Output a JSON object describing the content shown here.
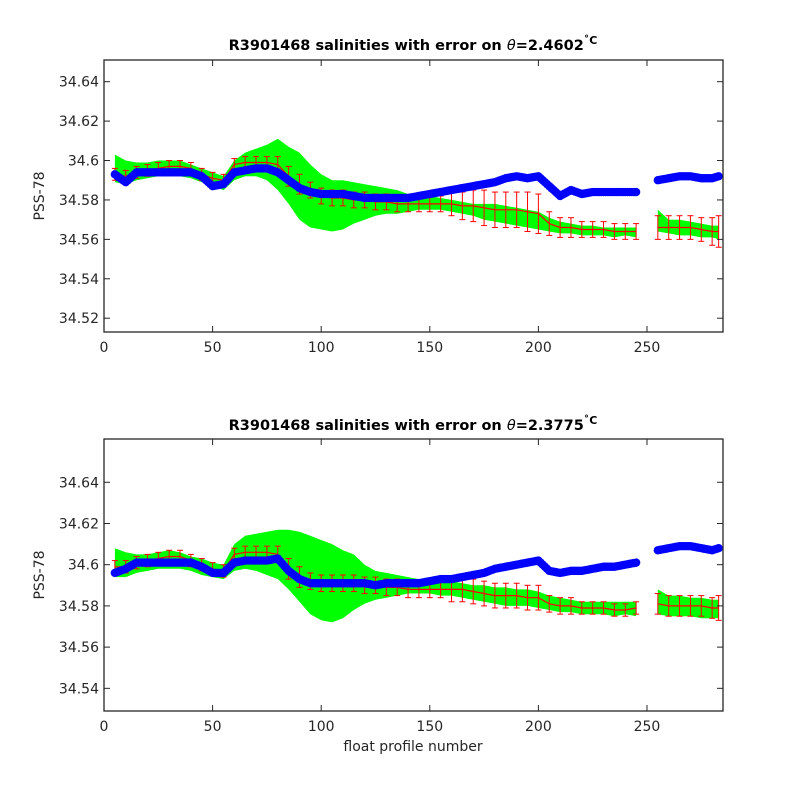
{
  "figure": {
    "xlabel": "float profile number"
  },
  "chart_data": [
    {
      "type": "line",
      "title": "R3901468 salinities with error on θ=2.4602˚C",
      "title_prefix": "R3901468 salinities with error on ",
      "title_theta": "θ",
      "title_value": "=2.4602",
      "title_unit": "˚C",
      "xlabel": "",
      "ylabel": "PSS-78",
      "xlim": [
        0,
        285
      ],
      "ylim": [
        34.513,
        34.651
      ],
      "xticks": [
        "0",
        "50",
        "100",
        "150",
        "200",
        "250"
      ],
      "yticks": [
        "34.52",
        "34.54",
        "34.56",
        "34.58",
        "34.6",
        "34.62",
        "34.64"
      ],
      "grid": false,
      "colors": {
        "envelope": "#00ff00",
        "errorbars": "#ff0000",
        "float": "#0000ff"
      },
      "x": [
        5,
        10,
        15,
        20,
        25,
        30,
        35,
        40,
        45,
        50,
        55,
        60,
        65,
        70,
        75,
        80,
        85,
        90,
        95,
        100,
        105,
        110,
        115,
        120,
        125,
        130,
        135,
        140,
        145,
        150,
        155,
        160,
        165,
        170,
        175,
        180,
        185,
        190,
        195,
        200,
        205,
        210,
        215,
        220,
        225,
        230,
        235,
        240,
        245,
        255,
        260,
        265,
        270,
        275,
        280,
        283
      ],
      "series": [
        {
          "role": "envelope",
          "upper": [
            34.603,
            34.6,
            34.599,
            34.599,
            34.6,
            34.6,
            34.6,
            34.598,
            34.596,
            34.594,
            34.592,
            34.6,
            34.604,
            34.606,
            34.608,
            34.611,
            34.607,
            34.604,
            34.598,
            34.593,
            34.59,
            34.59,
            34.589,
            34.588,
            34.587,
            34.586,
            34.585,
            34.583,
            34.582,
            34.582,
            34.581,
            34.58,
            34.579,
            34.578,
            34.578,
            34.578,
            34.577,
            34.576,
            34.575,
            34.574,
            34.571,
            34.569,
            34.568,
            34.567,
            34.567,
            34.566,
            34.566,
            34.566,
            34.566,
            34.575,
            34.57,
            34.57,
            34.569,
            34.568,
            34.567,
            34.567
          ],
          "lower": [
            34.589,
            34.588,
            34.59,
            34.591,
            34.592,
            34.592,
            34.592,
            34.591,
            34.589,
            34.587,
            34.585,
            34.59,
            34.592,
            34.592,
            34.59,
            34.585,
            34.578,
            34.57,
            34.566,
            34.565,
            34.564,
            34.565,
            34.568,
            34.57,
            34.572,
            34.573,
            34.573,
            34.574,
            34.575,
            34.575,
            34.575,
            34.574,
            34.573,
            34.572,
            34.57,
            34.569,
            34.568,
            34.567,
            34.566,
            34.565,
            34.564,
            34.563,
            34.563,
            34.562,
            34.562,
            34.562,
            34.561,
            34.562,
            34.561,
            34.564,
            34.563,
            34.562,
            34.562,
            34.561,
            34.561,
            34.56
          ]
        },
        {
          "role": "errorbars",
          "values": [
            34.593,
            34.592,
            34.594,
            34.595,
            34.596,
            34.597,
            34.597,
            34.596,
            34.593,
            34.591,
            34.59,
            34.598,
            34.599,
            34.599,
            34.599,
            34.598,
            34.592,
            34.588,
            34.585,
            34.582,
            34.581,
            34.581,
            34.58,
            34.58,
            34.579,
            34.579,
            34.578,
            34.578,
            34.578,
            34.578,
            34.578,
            34.578,
            34.577,
            34.577,
            34.576,
            34.575,
            34.575,
            34.575,
            34.574,
            34.573,
            34.568,
            34.566,
            34.566,
            34.565,
            34.565,
            34.565,
            34.564,
            34.564,
            34.564,
            34.566,
            34.566,
            34.566,
            34.566,
            34.565,
            34.564,
            34.564
          ],
          "errors": [
            0.003,
            0.003,
            0.003,
            0.003,
            0.003,
            0.003,
            0.003,
            0.003,
            0.003,
            0.003,
            0.003,
            0.003,
            0.003,
            0.003,
            0.003,
            0.004,
            0.005,
            0.005,
            0.004,
            0.004,
            0.004,
            0.004,
            0.004,
            0.004,
            0.004,
            0.004,
            0.004,
            0.004,
            0.004,
            0.004,
            0.004,
            0.006,
            0.007,
            0.008,
            0.009,
            0.009,
            0.009,
            0.009,
            0.01,
            0.01,
            0.006,
            0.005,
            0.005,
            0.004,
            0.004,
            0.004,
            0.004,
            0.004,
            0.004,
            0.006,
            0.006,
            0.006,
            0.006,
            0.006,
            0.007,
            0.008
          ]
        },
        {
          "role": "float",
          "values": [
            34.593,
            34.589,
            34.594,
            34.594,
            34.594,
            34.594,
            34.594,
            34.594,
            34.592,
            34.587,
            34.588,
            34.594,
            34.595,
            34.596,
            34.596,
            34.594,
            34.59,
            34.586,
            34.584,
            34.583,
            34.583,
            34.583,
            34.582,
            34.581,
            34.581,
            34.581,
            34.581,
            34.581,
            34.582,
            34.583,
            34.584,
            34.585,
            34.586,
            34.587,
            34.588,
            34.589,
            34.591,
            34.592,
            34.591,
            34.592,
            34.587,
            34.582,
            34.585,
            34.583,
            34.584,
            34.584,
            34.584,
            34.584,
            34.584,
            34.59,
            34.591,
            34.592,
            34.592,
            34.591,
            34.591,
            34.592
          ]
        }
      ]
    },
    {
      "type": "line",
      "title": "R3901468 salinities with error on θ=2.3775˚C",
      "title_prefix": "R3901468 salinities with error on ",
      "title_theta": "θ",
      "title_value": "=2.3775",
      "title_unit": "˚C",
      "xlabel": "float profile number",
      "ylabel": "PSS-78",
      "xlim": [
        0,
        285
      ],
      "ylim": [
        34.529,
        34.661
      ],
      "xticks": [
        "0",
        "50",
        "100",
        "150",
        "200",
        "250"
      ],
      "yticks": [
        "34.54",
        "34.56",
        "34.58",
        "34.6",
        "34.62",
        "34.64"
      ],
      "grid": false,
      "colors": {
        "envelope": "#00ff00",
        "errorbars": "#ff0000",
        "float": "#0000ff"
      },
      "x": [
        5,
        10,
        15,
        20,
        25,
        30,
        35,
        40,
        45,
        50,
        55,
        60,
        65,
        70,
        75,
        80,
        85,
        90,
        95,
        100,
        105,
        110,
        115,
        120,
        125,
        130,
        135,
        140,
        145,
        150,
        155,
        160,
        165,
        170,
        175,
        180,
        185,
        190,
        195,
        200,
        205,
        210,
        215,
        220,
        225,
        230,
        235,
        240,
        245,
        255,
        260,
        265,
        270,
        275,
        280,
        283
      ],
      "series": [
        {
          "role": "envelope",
          "upper": [
            34.608,
            34.606,
            34.605,
            34.605,
            34.606,
            34.607,
            34.606,
            34.604,
            34.603,
            34.601,
            34.6,
            34.61,
            34.614,
            34.615,
            34.616,
            34.617,
            34.617,
            34.616,
            34.614,
            34.612,
            34.61,
            34.607,
            34.605,
            34.6,
            34.597,
            34.596,
            34.595,
            34.594,
            34.593,
            34.593,
            34.592,
            34.592,
            34.591,
            34.59,
            34.59,
            34.589,
            34.589,
            34.588,
            34.588,
            34.587,
            34.585,
            34.584,
            34.583,
            34.582,
            34.582,
            34.582,
            34.582,
            34.582,
            34.582,
            34.588,
            34.585,
            34.585,
            34.584,
            34.584,
            34.583,
            34.583
          ],
          "lower": [
            34.594,
            34.594,
            34.596,
            34.597,
            34.598,
            34.598,
            34.598,
            34.597,
            34.595,
            34.594,
            34.593,
            34.597,
            34.598,
            34.597,
            34.595,
            34.593,
            34.588,
            34.582,
            34.576,
            34.573,
            34.572,
            34.574,
            34.578,
            34.581,
            34.583,
            34.584,
            34.585,
            34.586,
            34.586,
            34.586,
            34.585,
            34.585,
            34.584,
            34.583,
            34.582,
            34.581,
            34.58,
            34.58,
            34.58,
            34.579,
            34.578,
            34.577,
            34.577,
            34.576,
            34.576,
            34.576,
            34.575,
            34.576,
            34.575,
            34.576,
            34.575,
            34.575,
            34.575,
            34.574,
            34.574,
            34.574
          ]
        },
        {
          "role": "errorbars",
          "values": [
            34.599,
            34.599,
            34.601,
            34.602,
            34.603,
            34.604,
            34.604,
            34.602,
            34.6,
            34.598,
            34.597,
            34.605,
            34.606,
            34.606,
            34.606,
            34.605,
            34.598,
            34.594,
            34.592,
            34.591,
            34.591,
            34.591,
            34.591,
            34.59,
            34.59,
            34.589,
            34.589,
            34.588,
            34.588,
            34.588,
            34.588,
            34.588,
            34.588,
            34.587,
            34.586,
            34.585,
            34.585,
            34.585,
            34.584,
            34.584,
            34.581,
            34.58,
            34.58,
            34.579,
            34.579,
            34.579,
            34.578,
            34.578,
            34.579,
            34.581,
            34.58,
            34.58,
            34.58,
            34.58,
            34.579,
            34.579
          ],
          "errors": [
            0.003,
            0.003,
            0.003,
            0.003,
            0.003,
            0.003,
            0.003,
            0.003,
            0.003,
            0.003,
            0.003,
            0.003,
            0.003,
            0.003,
            0.003,
            0.004,
            0.005,
            0.005,
            0.004,
            0.004,
            0.004,
            0.004,
            0.004,
            0.004,
            0.004,
            0.004,
            0.004,
            0.004,
            0.004,
            0.004,
            0.004,
            0.006,
            0.006,
            0.006,
            0.006,
            0.006,
            0.006,
            0.006,
            0.006,
            0.006,
            0.004,
            0.004,
            0.004,
            0.003,
            0.003,
            0.003,
            0.003,
            0.003,
            0.003,
            0.005,
            0.005,
            0.005,
            0.005,
            0.005,
            0.005,
            0.006
          ]
        },
        {
          "role": "float",
          "values": [
            34.596,
            34.598,
            34.601,
            34.601,
            34.601,
            34.601,
            34.601,
            34.601,
            34.599,
            34.596,
            34.596,
            34.601,
            34.602,
            34.602,
            34.602,
            34.603,
            34.597,
            34.593,
            34.591,
            34.591,
            34.591,
            34.591,
            34.591,
            34.591,
            34.59,
            34.591,
            34.591,
            34.591,
            34.591,
            34.592,
            34.593,
            34.593,
            34.594,
            34.595,
            34.596,
            34.598,
            34.599,
            34.6,
            34.601,
            34.602,
            34.597,
            34.596,
            34.597,
            34.597,
            34.598,
            34.599,
            34.599,
            34.6,
            34.601,
            34.607,
            34.608,
            34.609,
            34.609,
            34.608,
            34.607,
            34.608
          ]
        }
      ]
    }
  ]
}
